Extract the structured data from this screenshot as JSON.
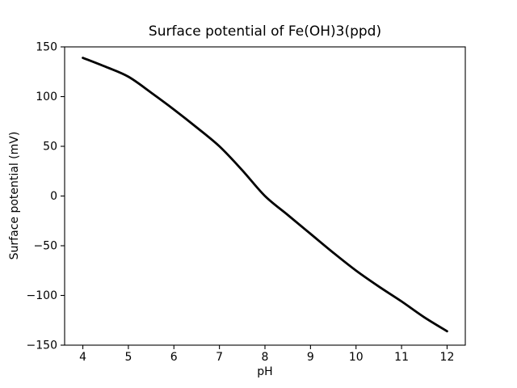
{
  "chart_data": {
    "type": "line",
    "title": "Surface potential of Fe(OH)3(ppd)",
    "xlabel": "pH",
    "ylabel": "Surface potential (mV)",
    "xlim": [
      3.6,
      12.4
    ],
    "ylim": [
      -150,
      150
    ],
    "x_ticks": [
      4,
      5,
      6,
      7,
      8,
      9,
      10,
      11,
      12
    ],
    "x_tick_labels": [
      "4",
      "5",
      "6",
      "7",
      "8",
      "9",
      "10",
      "11",
      "12"
    ],
    "y_ticks": [
      -150,
      -100,
      -50,
      0,
      50,
      100,
      150
    ],
    "y_tick_labels": [
      "−150",
      "−100",
      "−50",
      "0",
      "50",
      "100",
      "150"
    ],
    "grid": false,
    "legend": null,
    "background_color": "#ffffff",
    "line_color": "#000000",
    "spine_color": "#000000",
    "line_width": 2.8,
    "series": [
      {
        "name": "surface-potential-curve",
        "x": [
          4.0,
          4.5,
          5.0,
          5.5,
          6.0,
          6.5,
          7.0,
          7.5,
          8.0,
          8.5,
          9.0,
          9.5,
          10.0,
          10.5,
          11.0,
          11.5,
          12.0
        ],
        "y": [
          139,
          130,
          120,
          104,
          87,
          69,
          50,
          26,
          0,
          -19,
          -38,
          -57,
          -75,
          -91,
          -106,
          -122,
          -136
        ]
      }
    ]
  }
}
